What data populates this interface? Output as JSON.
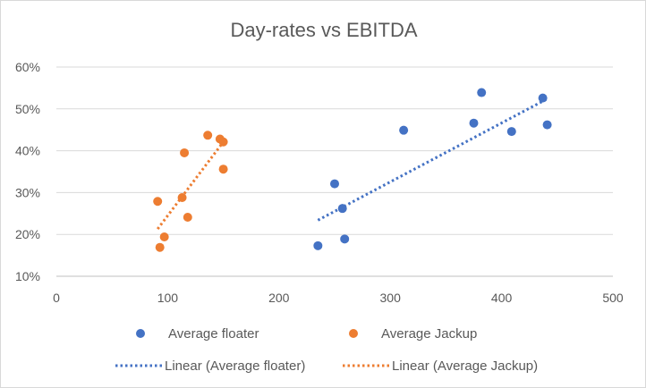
{
  "chart_data": {
    "type": "scatter",
    "title": "Day-rates vs EBITDA",
    "xlabel": "",
    "ylabel": "",
    "xlim": [
      0,
      500
    ],
    "ylim": [
      0.1,
      0.6
    ],
    "x_ticks": [
      0,
      100,
      200,
      300,
      400,
      500
    ],
    "x_tick_labels": [
      "0",
      "100",
      "200",
      "300",
      "400",
      "500"
    ],
    "y_ticks": [
      0.1,
      0.2,
      0.3,
      0.4,
      0.5,
      0.6
    ],
    "y_tick_labels": [
      "10%",
      "20%",
      "30%",
      "40%",
      "50%",
      "60%"
    ],
    "grid": "horizontal",
    "legend_position": "bottom",
    "series": [
      {
        "name": "Average floater",
        "color": "#4472C4",
        "points": [
          {
            "x": 235,
            "y": 0.173
          },
          {
            "x": 250,
            "y": 0.321
          },
          {
            "x": 257,
            "y": 0.262
          },
          {
            "x": 259,
            "y": 0.189
          },
          {
            "x": 312,
            "y": 0.449
          },
          {
            "x": 375,
            "y": 0.466
          },
          {
            "x": 382,
            "y": 0.539
          },
          {
            "x": 409,
            "y": 0.446
          },
          {
            "x": 437,
            "y": 0.526
          },
          {
            "x": 441,
            "y": 0.462
          }
        ],
        "trendline": {
          "name": "Linear (Average floater)",
          "type": "linear",
          "style": "dotted",
          "x": [
            235,
            441
          ],
          "y": [
            0.234,
            0.524
          ]
        }
      },
      {
        "name": "Average Jackup",
        "color": "#ED7D31",
        "points": [
          {
            "x": 91,
            "y": 0.279
          },
          {
            "x": 93,
            "y": 0.169
          },
          {
            "x": 97,
            "y": 0.194
          },
          {
            "x": 113,
            "y": 0.288
          },
          {
            "x": 115,
            "y": 0.395
          },
          {
            "x": 118,
            "y": 0.241
          },
          {
            "x": 136,
            "y": 0.437
          },
          {
            "x": 147,
            "y": 0.428
          },
          {
            "x": 150,
            "y": 0.421
          },
          {
            "x": 150,
            "y": 0.356
          }
        ],
        "trendline": {
          "name": "Linear (Average Jackup)",
          "type": "linear",
          "style": "dotted",
          "x": [
            91,
            150
          ],
          "y": [
            0.213,
            0.421
          ]
        }
      }
    ]
  }
}
